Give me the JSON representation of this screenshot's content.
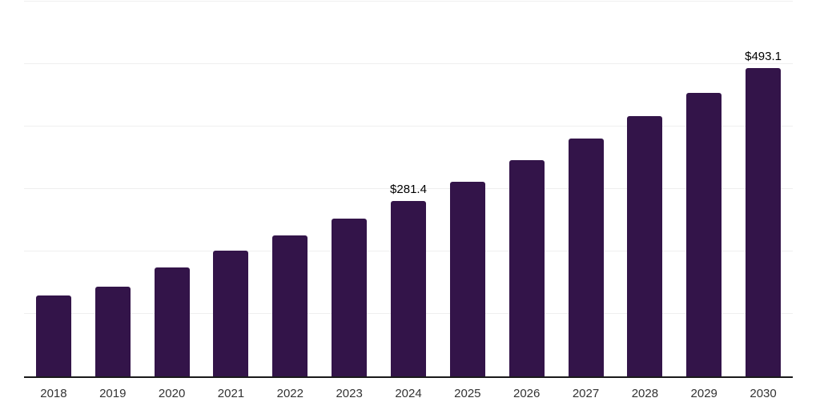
{
  "chart_data": {
    "type": "bar",
    "title": "",
    "xlabel": "",
    "ylabel": "",
    "categories": [
      "2018",
      "2019",
      "2020",
      "2021",
      "2022",
      "2023",
      "2024",
      "2025",
      "2026",
      "2027",
      "2028",
      "2029",
      "2030"
    ],
    "values": [
      129.0,
      144.2,
      173.9,
      200.7,
      226.2,
      252.4,
      281.4,
      312.1,
      346.2,
      380.6,
      416.4,
      453.8,
      493.1
    ],
    "labeled_points": [
      {
        "category": "2024",
        "label": "$281.4"
      },
      {
        "category": "2030",
        "label": "$493.1"
      }
    ],
    "ylim": [
      0,
      600
    ],
    "gridline_step": 100,
    "grid": "horizontal",
    "legend": "none",
    "y_axis_labels_visible": false,
    "colors": {
      "bar": "#331449",
      "gridline": "#efefef",
      "axis_line": "#1a1a1a",
      "tick_label": "#333333",
      "value_label": "#000000",
      "background": "#ffffff"
    }
  }
}
